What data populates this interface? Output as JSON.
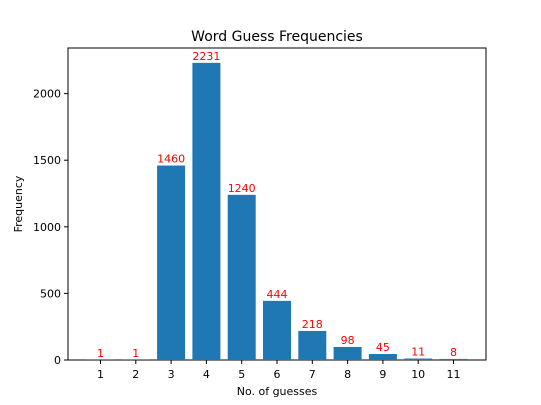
{
  "chart_data": {
    "type": "bar",
    "title": "Word Guess Frequencies",
    "xlabel": "No. of guesses",
    "ylabel": "Frequency",
    "categories": [
      "1",
      "2",
      "3",
      "4",
      "5",
      "6",
      "7",
      "8",
      "9",
      "10",
      "11"
    ],
    "values": [
      1,
      1,
      1460,
      2231,
      1240,
      444,
      218,
      98,
      45,
      11,
      8
    ],
    "data_labels": [
      "1",
      "1",
      "1460",
      "2231",
      "1240",
      "444",
      "218",
      "98",
      "45",
      "11",
      "8"
    ],
    "ylim": [
      0,
      2342.55
    ],
    "yticks": [
      0,
      500,
      1000,
      1500,
      2000
    ],
    "ytick_labels": [
      "0",
      "500",
      "1000",
      "1500",
      "2000"
    ],
    "grid": false,
    "legend": "none"
  },
  "colors": {
    "bar": "#1f77b4",
    "data_label": "#ff0000",
    "axis": "#000000"
  }
}
